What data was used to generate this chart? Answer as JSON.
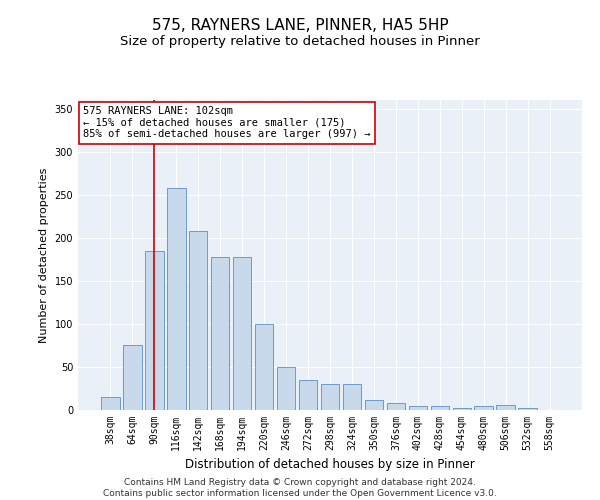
{
  "title1": "575, RAYNERS LANE, PINNER, HA5 5HP",
  "title2": "Size of property relative to detached houses in Pinner",
  "xlabel": "Distribution of detached houses by size in Pinner",
  "ylabel": "Number of detached properties",
  "bar_values": [
    15,
    75,
    185,
    258,
    208,
    178,
    178,
    100,
    50,
    35,
    30,
    30,
    12,
    8,
    5,
    5,
    2,
    5,
    6,
    2,
    0
  ],
  "categories": [
    "38sqm",
    "64sqm",
    "90sqm",
    "116sqm",
    "142sqm",
    "168sqm",
    "194sqm",
    "220sqm",
    "246sqm",
    "272sqm",
    "298sqm",
    "324sqm",
    "350sqm",
    "376sqm",
    "402sqm",
    "428sqm",
    "454sqm",
    "480sqm",
    "506sqm",
    "532sqm",
    "558sqm"
  ],
  "bar_color": "#c9d9ec",
  "bar_edge_color": "#5b8fc9",
  "vline_x": 2,
  "vline_color": "#cc0000",
  "annotation_text": "575 RAYNERS LANE: 102sqm\n← 15% of detached houses are smaller (175)\n85% of semi-detached houses are larger (997) →",
  "annotation_box_color": "#ffffff",
  "annotation_box_edge": "#cc0000",
  "ylim": [
    0,
    360
  ],
  "yticks": [
    0,
    50,
    100,
    150,
    200,
    250,
    300,
    350
  ],
  "background_color": "#eaf0f8",
  "footer_text": "Contains HM Land Registry data © Crown copyright and database right 2024.\nContains public sector information licensed under the Open Government Licence v3.0.",
  "title1_fontsize": 11,
  "title2_fontsize": 9.5,
  "xlabel_fontsize": 8.5,
  "ylabel_fontsize": 8,
  "tick_fontsize": 7,
  "annotation_fontsize": 7.5,
  "footer_fontsize": 6.5
}
